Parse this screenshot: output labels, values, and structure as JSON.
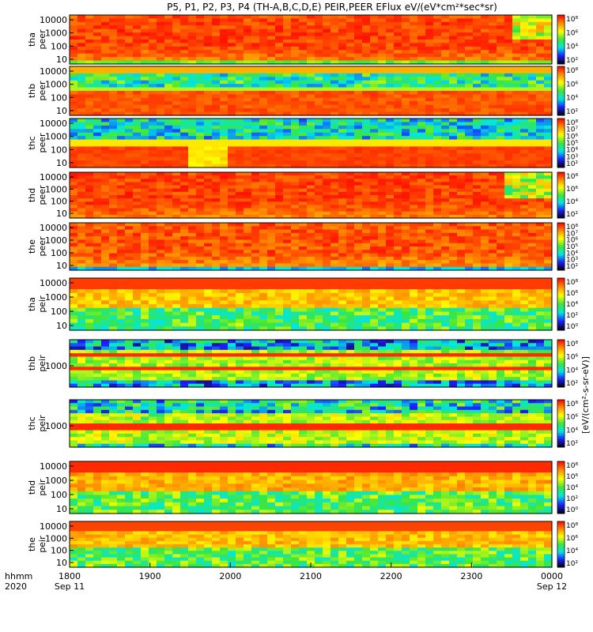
{
  "chart_data": {
    "type": "heatmap",
    "title": "P5, P1, P2, P3, P4 (TH-A,B,C,D,E) PEIR,PEER EFlux eV/(eV*cm²*sec*sr)",
    "x_ticks": [
      "1800",
      "1900",
      "2000",
      "2100",
      "2200",
      "2300",
      "0000"
    ],
    "x_tick_dates": {
      "1800": "Sep 11",
      "0000": "Sep 12"
    },
    "x_corner_label": [
      "hhmm",
      "2020"
    ],
    "y_scale": "log",
    "zscale": "log",
    "colorbar_label": "[eV/(cm²-s-sr-eV)]",
    "colormap": [
      "#000000",
      "#1e1eff",
      "#00e6e6",
      "#3ce63c",
      "#ffff00",
      "#ff8c00",
      "#ff0000"
    ],
    "panels": [
      {
        "id": "tha-peer",
        "ylabel": [
          "tha",
          "peer"
        ],
        "yticks": [
          "10000",
          "1000",
          "100",
          "10"
        ],
        "cbar_ticks": [
          "10⁸",
          "10⁶",
          "10⁴",
          "10²"
        ],
        "profile": "peer_a"
      },
      {
        "id": "thb-peer",
        "ylabel": [
          "thb",
          "peer"
        ],
        "yticks": [
          "10000",
          "1000",
          "100",
          "10"
        ],
        "cbar_ticks": [
          "10⁸",
          "10⁶",
          "10⁴",
          "10²"
        ],
        "profile": "peer_b"
      },
      {
        "id": "thc-peer",
        "ylabel": [
          "thc",
          "peer"
        ],
        "yticks": [
          "10000",
          "1000",
          "100",
          "10"
        ],
        "cbar_ticks": [
          "10⁸",
          "10⁷",
          "10⁶",
          "10⁵",
          "10⁴",
          "10³",
          "10²"
        ],
        "profile": "peer_c"
      },
      {
        "id": "thd-peer",
        "ylabel": [
          "thd",
          "peer"
        ],
        "yticks": [
          "10000",
          "1000",
          "100",
          "10"
        ],
        "cbar_ticks": [
          "10⁸",
          "10⁶",
          "10⁴",
          "10²"
        ],
        "profile": "peer_d"
      },
      {
        "id": "the-peer",
        "ylabel": [
          "the",
          "peer"
        ],
        "yticks": [
          "10000",
          "1000",
          "100",
          "10"
        ],
        "cbar_ticks": [
          "10⁸",
          "10⁷",
          "10⁶",
          "10⁵",
          "10⁴",
          "10³",
          "10²"
        ],
        "profile": "peer_e"
      },
      {
        "id": "tha-peir",
        "ylabel": [
          "tha",
          "peir"
        ],
        "yticks": [
          "10000",
          "1000",
          "100",
          "10"
        ],
        "cbar_ticks": [
          "10⁸",
          "10⁶",
          "10⁴",
          "10²",
          "10⁰"
        ],
        "profile": "peir_a"
      },
      {
        "id": "thb-peir",
        "ylabel": [
          "thb",
          "peir"
        ],
        "yticks": [
          "1000"
        ],
        "cbar_ticks": [
          "10⁸",
          "10⁶",
          "10⁴",
          "10²"
        ],
        "profile": "peir_b"
      },
      {
        "id": "thc-peir",
        "ylabel": [
          "thc",
          "peir"
        ],
        "yticks": [
          "1000"
        ],
        "cbar_ticks": [
          "10⁸",
          "10⁶",
          "10⁴",
          "10²"
        ],
        "profile": "peir_c"
      },
      {
        "id": "thd-peir",
        "ylabel": [
          "thd",
          "peir"
        ],
        "yticks": [
          "10000",
          "1000",
          "100",
          "10"
        ],
        "cbar_ticks": [
          "10⁸",
          "10⁶",
          "10⁴",
          "10²",
          "10⁰"
        ],
        "profile": "peir_d"
      },
      {
        "id": "the-peir",
        "ylabel": [
          "the",
          "peir"
        ],
        "yticks": [
          "10000",
          "1000",
          "100",
          "10"
        ],
        "cbar_ticks": [
          "10⁸",
          "10⁶",
          "10⁴",
          "10²"
        ],
        "profile": "peir_e"
      }
    ]
  }
}
